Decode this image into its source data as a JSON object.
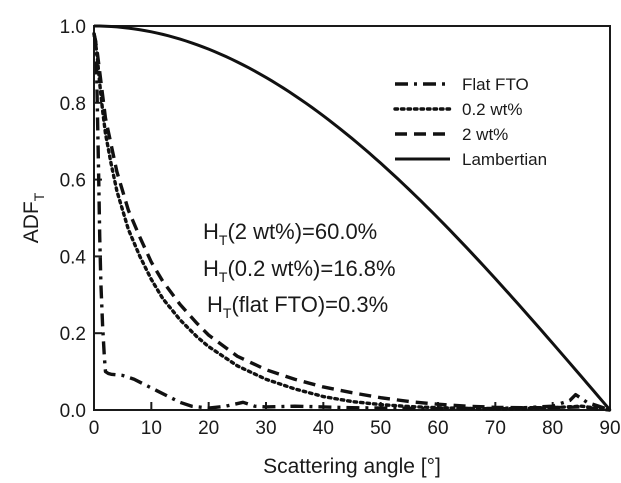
{
  "chart_data": {
    "type": "line",
    "xlabel": "Scattering angle [°]",
    "ylabel_main": "ADF",
    "ylabel_sub": "T",
    "xlim": [
      0,
      90
    ],
    "ylim": [
      0,
      1.0
    ],
    "x_ticks": [
      0,
      10,
      20,
      30,
      40,
      50,
      60,
      70,
      80,
      90
    ],
    "y_ticks": [
      0.0,
      0.2,
      0.4,
      0.6,
      0.8,
      1.0
    ],
    "y_tick_labels": [
      "0.0",
      "0.2",
      "0.4",
      "0.6",
      "0.8",
      "1.0"
    ],
    "grid": false,
    "legend_position": "top-right",
    "series": [
      {
        "name": "Flat FTO",
        "dash": "dashdot",
        "x": [
          0,
          0.3,
          0.5,
          0.8,
          1.0,
          1.2,
          1.5,
          1.8,
          2.0,
          2.5,
          3,
          5,
          7,
          9,
          11,
          13,
          15,
          17,
          20,
          23,
          26,
          28,
          30,
          35,
          40,
          45,
          50,
          55,
          60,
          65,
          70,
          75,
          80,
          83,
          84,
          85,
          86,
          88,
          90
        ],
        "y": [
          0.98,
          0.96,
          0.85,
          0.62,
          0.45,
          0.33,
          0.22,
          0.14,
          0.1,
          0.095,
          0.093,
          0.09,
          0.08,
          0.065,
          0.05,
          0.035,
          0.02,
          0.01,
          0.005,
          0.01,
          0.02,
          0.01,
          0.008,
          0.01,
          0.008,
          0.006,
          0.005,
          0.004,
          0.004,
          0.004,
          0.004,
          0.006,
          0.01,
          0.025,
          0.04,
          0.03,
          0.02,
          0.01,
          0.0
        ]
      },
      {
        "name": "0.2 wt%",
        "dash": "dotted",
        "x": [
          0,
          0.5,
          1,
          1.5,
          2,
          3,
          4,
          5,
          6,
          8,
          10,
          12,
          15,
          18,
          20,
          25,
          30,
          35,
          40,
          45,
          50,
          55,
          60,
          65,
          70,
          75,
          80,
          85,
          90
        ],
        "y": [
          0.98,
          0.93,
          0.85,
          0.78,
          0.72,
          0.64,
          0.57,
          0.52,
          0.47,
          0.4,
          0.34,
          0.29,
          0.235,
          0.19,
          0.165,
          0.115,
          0.08,
          0.055,
          0.035,
          0.022,
          0.014,
          0.009,
          0.006,
          0.004,
          0.003,
          0.004,
          0.006,
          0.01,
          0.0
        ]
      },
      {
        "name": "2 wt%",
        "dash": "dashed",
        "x": [
          0,
          0.5,
          1,
          1.5,
          2,
          3,
          4,
          5,
          6,
          8,
          10,
          12,
          15,
          18,
          20,
          25,
          30,
          35,
          40,
          45,
          50,
          55,
          60,
          65,
          70,
          75,
          80,
          85,
          90
        ],
        "y": [
          0.98,
          0.94,
          0.88,
          0.82,
          0.76,
          0.69,
          0.62,
          0.57,
          0.52,
          0.45,
          0.385,
          0.335,
          0.275,
          0.225,
          0.195,
          0.14,
          0.105,
          0.08,
          0.06,
          0.045,
          0.032,
          0.022,
          0.015,
          0.01,
          0.007,
          0.006,
          0.006,
          0.008,
          0.0
        ]
      },
      {
        "name": "Lambertian",
        "dash": "solid",
        "function": "cos",
        "x": [
          0,
          5,
          10,
          15,
          20,
          25,
          30,
          35,
          40,
          45,
          50,
          55,
          60,
          65,
          70,
          75,
          80,
          85,
          90
        ],
        "y": [
          1.0,
          0.996,
          0.985,
          0.966,
          0.94,
          0.906,
          0.866,
          0.819,
          0.766,
          0.707,
          0.643,
          0.574,
          0.5,
          0.423,
          0.342,
          0.259,
          0.174,
          0.087,
          0.0
        ]
      }
    ],
    "annotations": [
      {
        "main": "H",
        "sub": "T",
        "rest": "(2 wt%)=60.0%"
      },
      {
        "main": "H",
        "sub": "T",
        "rest": "(0.2 wt%)=16.8%"
      },
      {
        "main": "H",
        "sub": "T",
        "rest": "(flat FTO)=0.3%"
      }
    ]
  }
}
